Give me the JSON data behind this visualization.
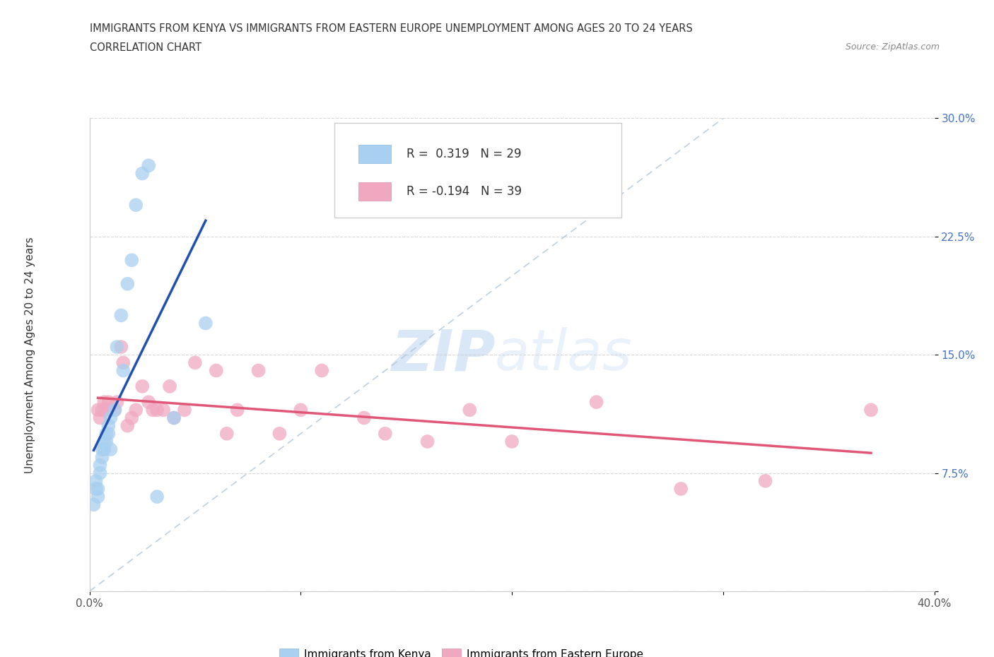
{
  "title_line1": "IMMIGRANTS FROM KENYA VS IMMIGRANTS FROM EASTERN EUROPE UNEMPLOYMENT AMONG AGES 20 TO 24 YEARS",
  "title_line2": "CORRELATION CHART",
  "source": "Source: ZipAtlas.com",
  "ylabel": "Unemployment Among Ages 20 to 24 years",
  "watermark_zip": "ZIP",
  "watermark_atlas": "atlas",
  "legend1_label": "Immigrants from Kenya",
  "legend2_label": "Immigrants from Eastern Europe",
  "r1": 0.319,
  "n1": 29,
  "r2": -0.194,
  "n2": 39,
  "xlim": [
    0.0,
    0.4
  ],
  "ylim": [
    0.0,
    0.3
  ],
  "color_kenya": "#a8d0f0",
  "color_eastern": "#f0a8c0",
  "color_line_kenya": "#2050b0",
  "color_line_eastern": "#e05878",
  "color_dashed": "#b0c4d8",
  "kenya_x": [
    0.002,
    0.003,
    0.003,
    0.004,
    0.004,
    0.005,
    0.005,
    0.006,
    0.006,
    0.007,
    0.007,
    0.008,
    0.008,
    0.009,
    0.009,
    0.01,
    0.01,
    0.012,
    0.013,
    0.015,
    0.016,
    0.018,
    0.02,
    0.022,
    0.025,
    0.028,
    0.032,
    0.04,
    0.055
  ],
  "kenya_y": [
    0.055,
    0.065,
    0.07,
    0.06,
    0.065,
    0.075,
    0.08,
    0.085,
    0.09,
    0.09,
    0.095,
    0.1,
    0.095,
    0.1,
    0.105,
    0.11,
    0.09,
    0.115,
    0.155,
    0.175,
    0.14,
    0.195,
    0.21,
    0.245,
    0.265,
    0.27,
    0.06,
    0.11,
    0.17
  ],
  "eastern_x": [
    0.004,
    0.005,
    0.006,
    0.007,
    0.008,
    0.009,
    0.01,
    0.012,
    0.013,
    0.015,
    0.016,
    0.018,
    0.02,
    0.022,
    0.025,
    0.028,
    0.03,
    0.032,
    0.035,
    0.038,
    0.04,
    0.045,
    0.05,
    0.06,
    0.065,
    0.07,
    0.08,
    0.09,
    0.1,
    0.11,
    0.13,
    0.14,
    0.16,
    0.18,
    0.2,
    0.24,
    0.28,
    0.32,
    0.37
  ],
  "eastern_y": [
    0.115,
    0.11,
    0.115,
    0.12,
    0.115,
    0.12,
    0.115,
    0.115,
    0.12,
    0.155,
    0.145,
    0.105,
    0.11,
    0.115,
    0.13,
    0.12,
    0.115,
    0.115,
    0.115,
    0.13,
    0.11,
    0.115,
    0.145,
    0.14,
    0.1,
    0.115,
    0.14,
    0.1,
    0.115,
    0.14,
    0.11,
    0.1,
    0.095,
    0.115,
    0.095,
    0.12,
    0.065,
    0.07,
    0.115
  ]
}
